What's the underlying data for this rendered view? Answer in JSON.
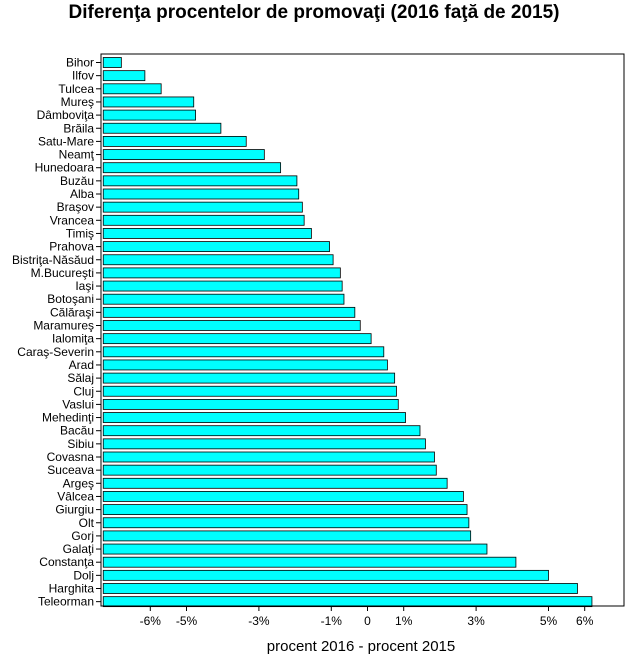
{
  "chart_data": {
    "type": "bar",
    "orientation": "horizontal",
    "title": "Diferenţa procentelor de promovaţi (2016 faţă de 2015)",
    "xlabel": "procent 2016 - procent 2015",
    "ylabel": "",
    "xlim": [
      -7.3,
      7.0
    ],
    "xticks": [
      {
        "value": -6,
        "label": "-6%"
      },
      {
        "value": -5,
        "label": "-5%"
      },
      {
        "value": -3,
        "label": "-3%"
      },
      {
        "value": -1,
        "label": "-1%"
      },
      {
        "value": 0,
        "label": "0"
      },
      {
        "value": 1,
        "label": "1%"
      },
      {
        "value": 3,
        "label": "3%"
      },
      {
        "value": 5,
        "label": "5%"
      },
      {
        "value": 6,
        "label": "6%"
      }
    ],
    "grid_x": [
      -5,
      -3,
      -1,
      1,
      3,
      5
    ],
    "categories": [
      "Bihor",
      "Ilfov",
      "Tulcea",
      "Mureş",
      "Dâmboviţa",
      "Brăila",
      "Satu-Mare",
      "Neamţ",
      "Hunedoara",
      "Buzău",
      "Alba",
      "Braşov",
      "Vrancea",
      "Timiş",
      "Prahova",
      "Bistriţa-Năsăud",
      "M.Bucureşti",
      "Iaşi",
      "Botoşani",
      "Călăraşi",
      "Maramureş",
      "Ialomiţa",
      "Caraş-Severin",
      "Arad",
      "Sălaj",
      "Cluj",
      "Vaslui",
      "Mehedinţi",
      "Bacău",
      "Sibiu",
      "Covasna",
      "Suceava",
      "Argeş",
      "Vâlcea",
      "Giurgiu",
      "Olt",
      "Gorj",
      "Galaţi",
      "Constanţa",
      "Dolj",
      "Harghita",
      "Teleorman"
    ],
    "values": [
      -6.8,
      -6.15,
      -5.7,
      -4.8,
      -4.75,
      -4.05,
      -3.35,
      -2.85,
      -2.4,
      -1.95,
      -1.9,
      -1.8,
      -1.75,
      -1.55,
      -1.05,
      -0.95,
      -0.75,
      -0.7,
      -0.65,
      -0.35,
      -0.2,
      0.1,
      0.45,
      0.55,
      0.75,
      0.8,
      0.85,
      1.05,
      1.45,
      1.6,
      1.85,
      1.9,
      2.2,
      2.65,
      2.75,
      2.8,
      2.85,
      3.3,
      4.1,
      5.0,
      5.8,
      6.2
    ],
    "bar_color": "#00ffff",
    "bar_edge_color": "#000000",
    "grid": true
  }
}
